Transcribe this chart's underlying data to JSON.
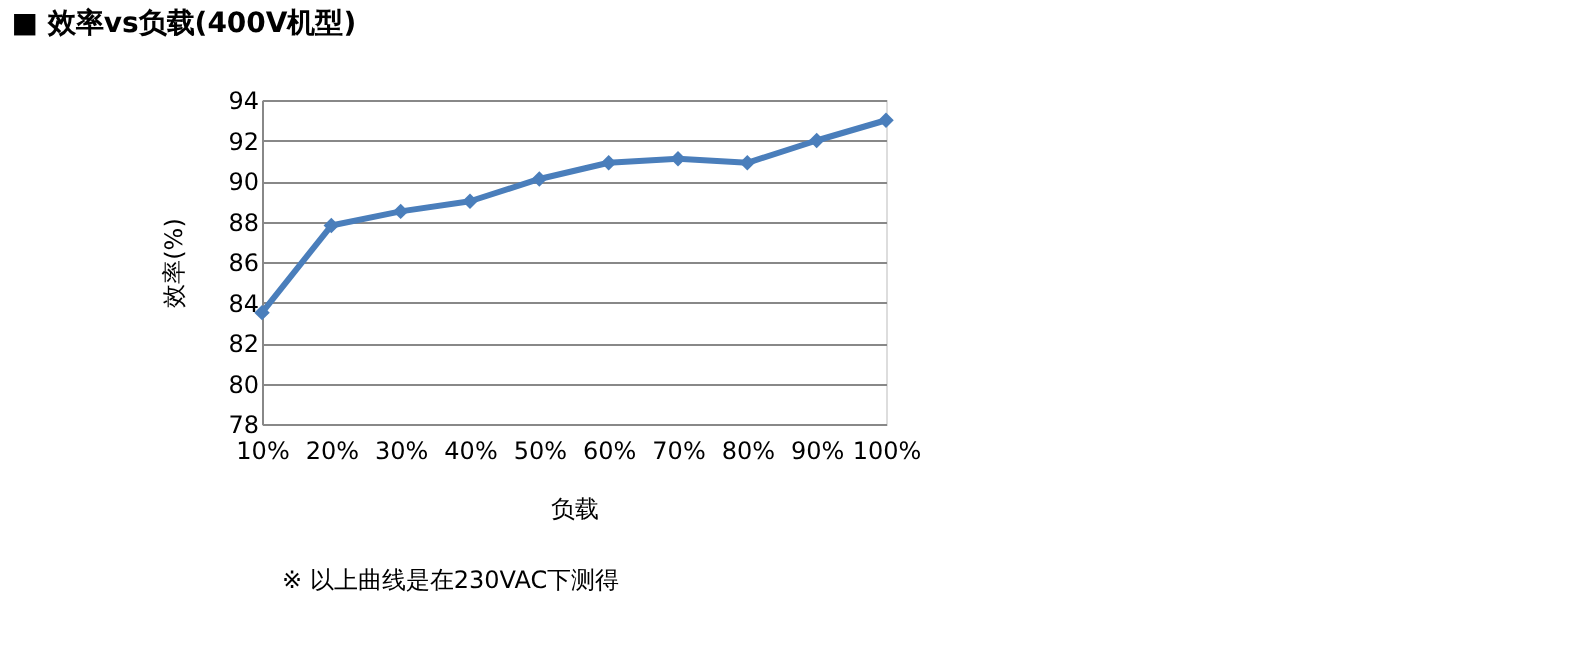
{
  "chart_data": {
    "type": "line",
    "title": "■ 效率vs负载(400V机型)",
    "xlabel": "负载",
    "ylabel": "效率(%)",
    "categories": [
      "10%",
      "20%",
      "30%",
      "40%",
      "50%",
      "60%",
      "70%",
      "80%",
      "90%",
      "100%"
    ],
    "series": [
      {
        "color": "#4a7ebb",
        "values": [
          83.5,
          87.8,
          88.5,
          89.0,
          90.1,
          90.9,
          91.1,
          90.9,
          92.0,
          93.0
        ]
      }
    ],
    "ylim": [
      78,
      94
    ],
    "yticks": [
      78,
      80,
      82,
      84,
      86,
      88,
      90,
      92,
      94
    ],
    "grid": "y",
    "marker": "diamond",
    "line_style": "solid",
    "legend": false,
    "annotations": [
      "※ 以上曲线是在230VAC下测得"
    ]
  }
}
